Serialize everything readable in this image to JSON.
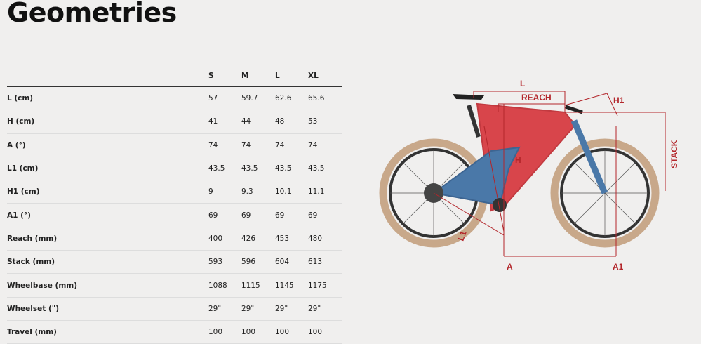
{
  "page": {
    "title": "Geometries"
  },
  "table": {
    "header": [
      "S",
      "M",
      "L",
      "XL"
    ],
    "rows": [
      [
        "L (cm)",
        "57",
        "59.7",
        "62.6",
        "65.6"
      ],
      [
        "H (cm)",
        "41",
        "44",
        "48",
        "53"
      ],
      [
        "A (°)",
        "74",
        "74",
        "74",
        "74"
      ],
      [
        "L1 (cm)",
        "43.5",
        "43.5",
        "43.5",
        "43.5"
      ],
      [
        "H1 (cm)",
        "9",
        "9.3",
        "10.1",
        "11.1"
      ],
      [
        "A1 (°)",
        "69",
        "69",
        "69",
        "69"
      ],
      [
        "Reach (mm)",
        "400",
        "426",
        "453",
        "480"
      ],
      [
        "Stack (mm)",
        "593",
        "596",
        "604",
        "613"
      ],
      [
        "Wheelbase (mm)",
        "1088",
        "1115",
        "1145",
        "1175"
      ],
      [
        "Wheelset (\")",
        "29\"",
        "29\"",
        "29\"",
        "29\""
      ],
      [
        "Travel (mm)",
        "100",
        "100",
        "100",
        "100"
      ]
    ]
  },
  "diagram": {
    "labels": {
      "l": "L",
      "reach": "REACH",
      "h1": "H1",
      "stack": "STACK",
      "h": "H",
      "l1": "L1",
      "a": "A",
      "a1": "A1"
    }
  }
}
